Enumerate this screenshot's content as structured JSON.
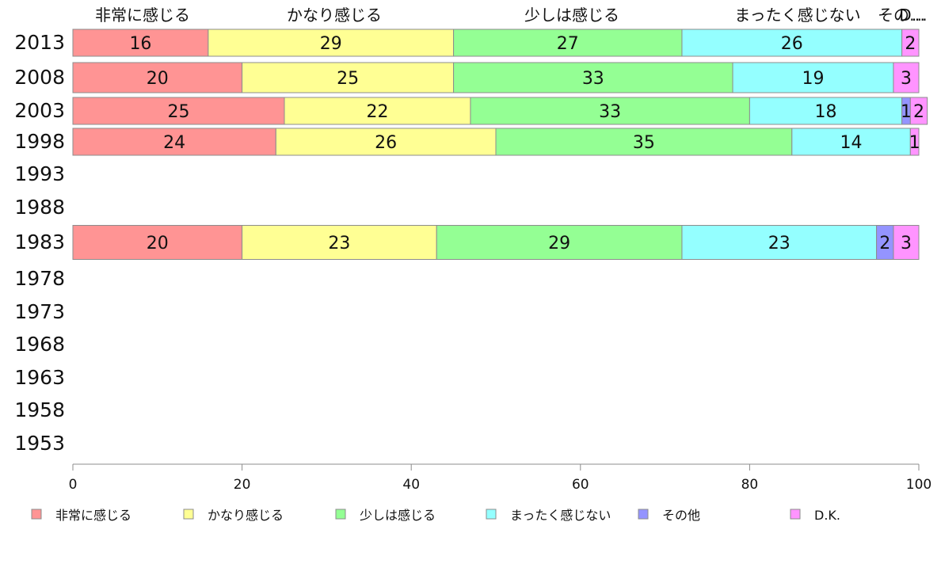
{
  "chart_data": {
    "type": "bar",
    "orientation": "horizontal",
    "stacked": true,
    "xlim": [
      0,
      100
    ],
    "x_ticks": [
      0,
      20,
      40,
      60,
      80,
      100
    ],
    "grid": false,
    "legend_position": "bottom",
    "categories": [
      "2013",
      "2008",
      "2003",
      "1998",
      "1993",
      "1988",
      "1983",
      "1978",
      "1973",
      "1968",
      "1963",
      "1958",
      "1953"
    ],
    "top_labels": [
      "非常に感じる",
      "かなり感じる",
      "少しは感じる",
      "まったく感じない",
      "その…",
      "D…"
    ],
    "series": [
      {
        "name": "非常に感じる",
        "color": "#ff9494",
        "values": [
          16,
          20,
          25,
          24,
          null,
          null,
          20,
          null,
          null,
          null,
          null,
          null,
          null
        ]
      },
      {
        "name": "かなり感じる",
        "color": "#ffff94",
        "values": [
          29,
          25,
          22,
          26,
          null,
          null,
          23,
          null,
          null,
          null,
          null,
          null,
          null
        ]
      },
      {
        "name": "少しは感じる",
        "color": "#94ff94",
        "values": [
          27,
          33,
          33,
          35,
          null,
          null,
          29,
          null,
          null,
          null,
          null,
          null,
          null
        ]
      },
      {
        "name": "まったく感じない",
        "color": "#94ffff",
        "values": [
          26,
          19,
          18,
          14,
          null,
          null,
          23,
          null,
          null,
          null,
          null,
          null,
          null
        ]
      },
      {
        "name": "その他",
        "color": "#9494ff",
        "values": [
          0,
          0,
          1,
          0,
          null,
          null,
          2,
          null,
          null,
          null,
          null,
          null,
          null
        ]
      },
      {
        "name": "D.K.",
        "color": "#ff94ff",
        "values": [
          2,
          3,
          2,
          1,
          null,
          null,
          3,
          null,
          null,
          null,
          null,
          null,
          null
        ]
      }
    ]
  }
}
